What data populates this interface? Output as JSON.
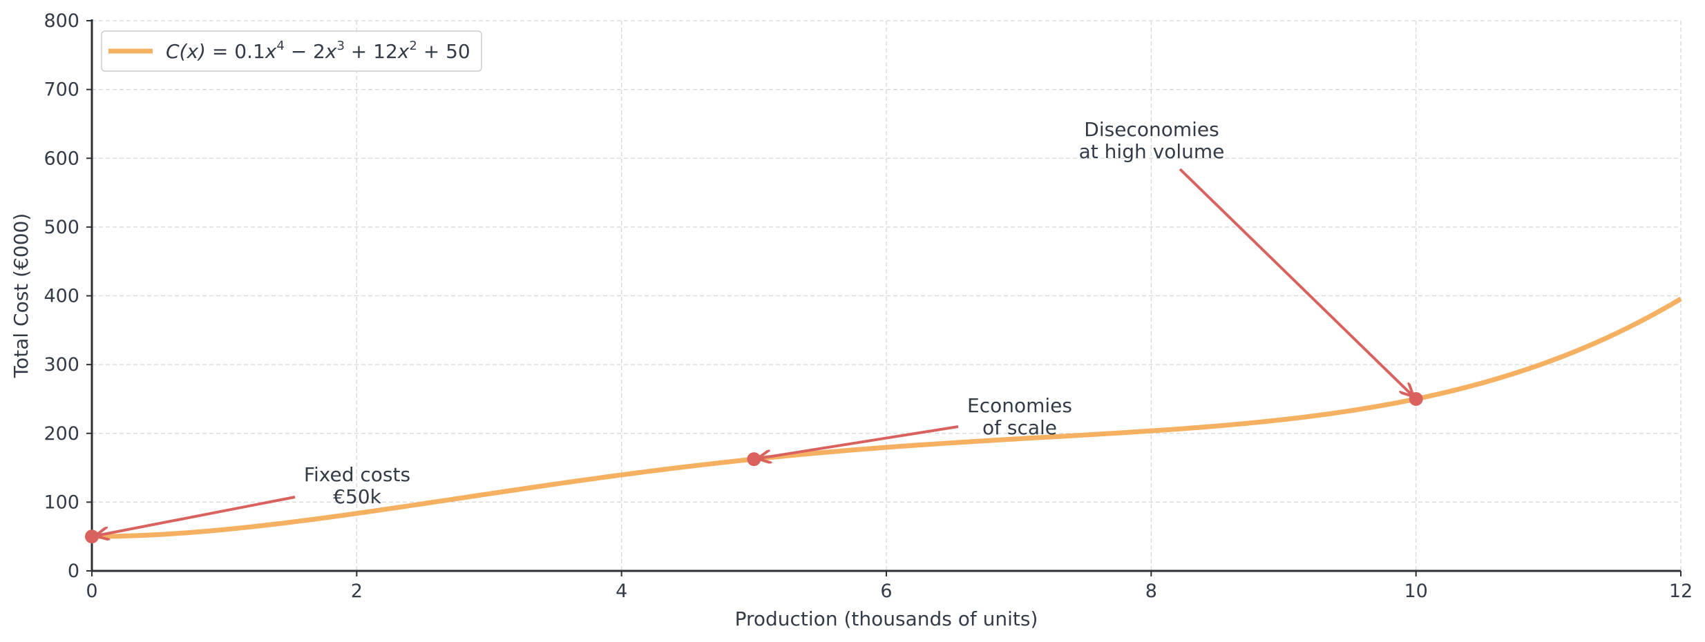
{
  "chart_data": {
    "type": "line",
    "title": "",
    "xlabel": "Production (thousands of units)",
    "ylabel": "Total Cost (€000)",
    "xlim": [
      0,
      12
    ],
    "ylim": [
      0,
      800
    ],
    "xticks": [
      0,
      2,
      4,
      6,
      8,
      10,
      12
    ],
    "yticks": [
      0,
      100,
      200,
      300,
      400,
      500,
      600,
      700,
      800
    ],
    "grid": true,
    "legend_position": "top-left",
    "series": [
      {
        "name": "C(x) = 0.1x^4 - 2x^3 + 12x^2 + 50",
        "legend_parts": {
          "lhs": "C(x)",
          "eq": " = 0.1",
          "v1": "x",
          "p1": "4",
          "m2": " − 2",
          "v2": "x",
          "p2": "3",
          "m3": " + 12",
          "v3": "x",
          "p3": "2",
          "tail": " + 50"
        },
        "coefficients": {
          "x4": 0.1,
          "x3": -2,
          "x2": 12,
          "x1": 0,
          "x0": 50
        },
        "color": "#f5b061"
      }
    ],
    "points": [
      {
        "x": 0,
        "y": 50
      },
      {
        "x": 5,
        "y": 162.5
      },
      {
        "x": 10,
        "y": 250
      }
    ],
    "annotations": [
      {
        "lines": [
          "Fixed costs",
          "€50k"
        ],
        "target": [
          0,
          50
        ]
      },
      {
        "lines": [
          "Economies",
          "of scale"
        ],
        "target": [
          5,
          162.5
        ]
      },
      {
        "lines": [
          "Diseconomies",
          "at high volume"
        ],
        "target": [
          10,
          250
        ]
      }
    ],
    "marker_color": "#d9625f",
    "arrow_color": "#d9625f"
  }
}
